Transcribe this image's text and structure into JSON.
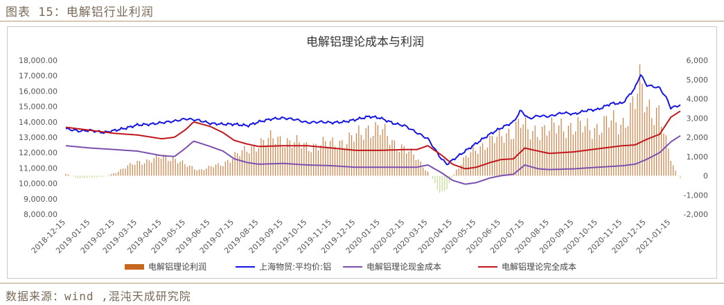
{
  "caption": "图表 15：电解铝行业利润",
  "source": "数据来源：wind ,混沌天成研究院",
  "colors": {
    "profit_pos": "#c8671f",
    "profit_neg": "#b9d77a",
    "price": "#1414e6",
    "cash_cost": "#7b4fb0",
    "full_cost": "#c0161a"
  },
  "chart_data": {
    "type": "line",
    "title": "电解铝理论成本与利润",
    "y_left_ticks": [
      "18,000.00",
      "17,000.00",
      "16,000.00",
      "15,000.00",
      "14,000.00",
      "13,000.00",
      "12,000.00",
      "11,000.00",
      "10,000.00",
      "9,000.00",
      "8,000.00"
    ],
    "y_right_ticks": [
      "6,000",
      "5,000",
      "4,000",
      "3,000",
      "2,000",
      "1,000",
      "0",
      "-1,000",
      "-2,000"
    ],
    "ylim_left": [
      8000,
      18000
    ],
    "ylim_right": [
      -2000,
      6000
    ],
    "x_ticks": [
      "2018-12-15",
      "2019-01-15",
      "2019-02-15",
      "2019-03-15",
      "2019-04-15",
      "2019-05-15",
      "2019-06-15",
      "2019-07-15",
      "2019-08-15",
      "2019-09-15",
      "2019-10-15",
      "2019-11-15",
      "2019-12-15",
      "2020-01-15",
      "2020-02-15",
      "2020-03-15",
      "2020-04-15",
      "2020-05-15",
      "2020-06-15",
      "2020-07-15",
      "2020-08-15",
      "2020-09-15",
      "2020-10-15",
      "2020-11-15",
      "2020-12-15",
      "2021-01-15"
    ],
    "x_start": "2018-12-15",
    "x_end": "2021-01-27",
    "legend": [
      {
        "label": "电解铝理论利润",
        "kind": "bar",
        "color": "#c8671f"
      },
      {
        "label": "上海物贸:平均价:铝",
        "kind": "line",
        "color": "#1414e6"
      },
      {
        "label": "电解铝理论现金成本",
        "kind": "line",
        "color": "#7b4fb0"
      },
      {
        "label": "电解铝理论完全成本",
        "kind": "line",
        "color": "#c0161a"
      }
    ],
    "series": [
      {
        "name": "上海物贸:平均价:铝",
        "axis": "left",
        "points": [
          [
            "2018-12-15",
            13550
          ],
          [
            "2019-01-01",
            13400
          ],
          [
            "2019-01-15",
            13450
          ],
          [
            "2019-02-01",
            13300
          ],
          [
            "2019-02-15",
            13450
          ],
          [
            "2019-03-01",
            13600
          ],
          [
            "2019-03-15",
            13800
          ],
          [
            "2019-04-01",
            13850
          ],
          [
            "2019-04-15",
            13950
          ],
          [
            "2019-05-01",
            14050
          ],
          [
            "2019-05-15",
            14200
          ],
          [
            "2019-06-01",
            14100
          ],
          [
            "2019-06-15",
            13900
          ],
          [
            "2019-07-01",
            13850
          ],
          [
            "2019-07-15",
            13850
          ],
          [
            "2019-08-01",
            13750
          ],
          [
            "2019-08-15",
            14000
          ],
          [
            "2019-09-01",
            14200
          ],
          [
            "2019-09-15",
            14250
          ],
          [
            "2019-10-01",
            14150
          ],
          [
            "2019-10-15",
            13950
          ],
          [
            "2019-11-01",
            14000
          ],
          [
            "2019-11-15",
            13950
          ],
          [
            "2019-12-01",
            14000
          ],
          [
            "2019-12-15",
            14150
          ],
          [
            "2020-01-01",
            14350
          ],
          [
            "2020-01-15",
            14250
          ],
          [
            "2020-02-01",
            13900
          ],
          [
            "2020-02-15",
            13750
          ],
          [
            "2020-03-01",
            13300
          ],
          [
            "2020-03-15",
            12900
          ],
          [
            "2020-04-01",
            11600
          ],
          [
            "2020-04-08",
            11250
          ],
          [
            "2020-04-20",
            11700
          ],
          [
            "2020-05-01",
            12100
          ],
          [
            "2020-05-15",
            12600
          ],
          [
            "2020-06-01",
            13200
          ],
          [
            "2020-06-15",
            13600
          ],
          [
            "2020-07-01",
            14000
          ],
          [
            "2020-07-10",
            14750
          ],
          [
            "2020-07-20",
            14200
          ],
          [
            "2020-08-01",
            14400
          ],
          [
            "2020-08-15",
            14350
          ],
          [
            "2020-09-01",
            14600
          ],
          [
            "2020-09-15",
            14500
          ],
          [
            "2020-10-01",
            14750
          ],
          [
            "2020-10-15",
            14800
          ],
          [
            "2020-11-01",
            15200
          ],
          [
            "2020-11-15",
            15200
          ],
          [
            "2020-12-01",
            16200
          ],
          [
            "2020-12-08",
            17100
          ],
          [
            "2020-12-15",
            16400
          ],
          [
            "2021-01-01",
            16200
          ],
          [
            "2021-01-10",
            15500
          ],
          [
            "2021-01-15",
            14900
          ],
          [
            "2021-01-27",
            15100
          ]
        ]
      },
      {
        "name": "电解铝理论现金成本",
        "axis": "left",
        "points": [
          [
            "2018-12-15",
            12450
          ],
          [
            "2019-01-15",
            12300
          ],
          [
            "2019-02-15",
            12200
          ],
          [
            "2019-03-15",
            12100
          ],
          [
            "2019-04-15",
            11800
          ],
          [
            "2019-05-01",
            11750
          ],
          [
            "2019-05-15",
            12300
          ],
          [
            "2019-05-25",
            12750
          ],
          [
            "2019-06-15",
            12400
          ],
          [
            "2019-07-01",
            12100
          ],
          [
            "2019-07-15",
            11600
          ],
          [
            "2019-08-01",
            11350
          ],
          [
            "2019-08-15",
            11250
          ],
          [
            "2019-09-15",
            11300
          ],
          [
            "2019-10-15",
            11200
          ],
          [
            "2019-11-15",
            11150
          ],
          [
            "2019-12-15",
            11050
          ],
          [
            "2020-01-15",
            11050
          ],
          [
            "2020-02-15",
            11050
          ],
          [
            "2020-03-01",
            11050
          ],
          [
            "2020-03-15",
            11200
          ],
          [
            "2020-04-01",
            10700
          ],
          [
            "2020-04-15",
            10200
          ],
          [
            "2020-05-01",
            9950
          ],
          [
            "2020-05-15",
            10050
          ],
          [
            "2020-06-01",
            10350
          ],
          [
            "2020-06-15",
            10500
          ],
          [
            "2020-07-01",
            10600
          ],
          [
            "2020-07-15",
            11200
          ],
          [
            "2020-08-01",
            10950
          ],
          [
            "2020-08-15",
            10900
          ],
          [
            "2020-09-15",
            10950
          ],
          [
            "2020-10-15",
            11050
          ],
          [
            "2020-11-15",
            11150
          ],
          [
            "2020-12-01",
            11250
          ],
          [
            "2020-12-15",
            11550
          ],
          [
            "2021-01-01",
            12000
          ],
          [
            "2021-01-15",
            12700
          ],
          [
            "2021-01-27",
            13100
          ]
        ]
      },
      {
        "name": "电解铝理论完全成本",
        "axis": "left",
        "points": [
          [
            "2018-12-15",
            13650
          ],
          [
            "2019-01-15",
            13450
          ],
          [
            "2019-02-15",
            13250
          ],
          [
            "2019-03-15",
            13150
          ],
          [
            "2019-04-15",
            12900
          ],
          [
            "2019-05-01",
            13000
          ],
          [
            "2019-05-15",
            13500
          ],
          [
            "2019-05-25",
            14000
          ],
          [
            "2019-06-15",
            13700
          ],
          [
            "2019-07-01",
            13300
          ],
          [
            "2019-07-15",
            12800
          ],
          [
            "2019-08-01",
            12550
          ],
          [
            "2019-08-15",
            12400
          ],
          [
            "2019-09-15",
            12450
          ],
          [
            "2019-10-15",
            12450
          ],
          [
            "2019-11-15",
            12300
          ],
          [
            "2019-12-15",
            12150
          ],
          [
            "2020-01-15",
            12150
          ],
          [
            "2020-02-15",
            12200
          ],
          [
            "2020-03-01",
            12200
          ],
          [
            "2020-03-15",
            12450
          ],
          [
            "2020-04-01",
            11850
          ],
          [
            "2020-04-15",
            11250
          ],
          [
            "2020-05-01",
            10950
          ],
          [
            "2020-05-15",
            11050
          ],
          [
            "2020-06-01",
            11350
          ],
          [
            "2020-06-15",
            11550
          ],
          [
            "2020-07-01",
            11600
          ],
          [
            "2020-07-15",
            12300
          ],
          [
            "2020-08-01",
            12100
          ],
          [
            "2020-08-15",
            11950
          ],
          [
            "2020-09-15",
            12050
          ],
          [
            "2020-10-15",
            12250
          ],
          [
            "2020-11-15",
            12450
          ],
          [
            "2020-12-01",
            12500
          ],
          [
            "2020-12-15",
            12850
          ],
          [
            "2021-01-01",
            13200
          ],
          [
            "2021-01-15",
            14300
          ],
          [
            "2021-01-27",
            14700
          ]
        ]
      },
      {
        "name": "电解铝理论利润",
        "axis": "right",
        "kind": "bar",
        "points": [
          [
            "2018-12-15",
            100
          ],
          [
            "2019-01-01",
            -150
          ],
          [
            "2019-01-15",
            -100
          ],
          [
            "2019-02-01",
            -50
          ],
          [
            "2019-02-15",
            150
          ],
          [
            "2019-03-01",
            450
          ],
          [
            "2019-03-15",
            700
          ],
          [
            "2019-04-01",
            800
          ],
          [
            "2019-04-15",
            1000
          ],
          [
            "2019-05-01",
            900
          ],
          [
            "2019-05-15",
            550
          ],
          [
            "2019-06-01",
            300
          ],
          [
            "2019-06-15",
            450
          ],
          [
            "2019-07-01",
            600
          ],
          [
            "2019-07-15",
            1050
          ],
          [
            "2019-08-01",
            1300
          ],
          [
            "2019-08-15",
            1700
          ],
          [
            "2019-09-01",
            1900
          ],
          [
            "2019-09-15",
            1850
          ],
          [
            "2019-10-01",
            1700
          ],
          [
            "2019-10-15",
            1500
          ],
          [
            "2019-11-01",
            1650
          ],
          [
            "2019-11-15",
            1650
          ],
          [
            "2019-12-01",
            1800
          ],
          [
            "2019-12-15",
            2000
          ],
          [
            "2020-01-01",
            2500
          ],
          [
            "2020-01-15",
            2400
          ],
          [
            "2020-02-01",
            1700
          ],
          [
            "2020-02-15",
            1400
          ],
          [
            "2020-03-01",
            900
          ],
          [
            "2020-03-15",
            200
          ],
          [
            "2020-03-25",
            -450
          ],
          [
            "2020-04-01",
            -950
          ],
          [
            "2020-04-10",
            -500
          ],
          [
            "2020-04-20",
            300
          ],
          [
            "2020-05-01",
            900
          ],
          [
            "2020-05-15",
            1400
          ],
          [
            "2020-06-01",
            1800
          ],
          [
            "2020-06-15",
            2000
          ],
          [
            "2020-07-01",
            2400
          ],
          [
            "2020-07-10",
            2800
          ],
          [
            "2020-07-20",
            2200
          ],
          [
            "2020-08-01",
            2400
          ],
          [
            "2020-08-15",
            2400
          ],
          [
            "2020-09-01",
            2600
          ],
          [
            "2020-09-15",
            2500
          ],
          [
            "2020-10-01",
            2500
          ],
          [
            "2020-10-15",
            2500
          ],
          [
            "2020-11-01",
            2800
          ],
          [
            "2020-11-15",
            2700
          ],
          [
            "2020-12-01",
            3800
          ],
          [
            "2020-12-08",
            4800
          ],
          [
            "2020-12-15",
            3700
          ],
          [
            "2021-01-01",
            3200
          ],
          [
            "2021-01-10",
            1500
          ],
          [
            "2021-01-20",
            300
          ],
          [
            "2021-01-27",
            -200
          ]
        ]
      }
    ],
    "grid": false,
    "legend_position": "bottom"
  }
}
